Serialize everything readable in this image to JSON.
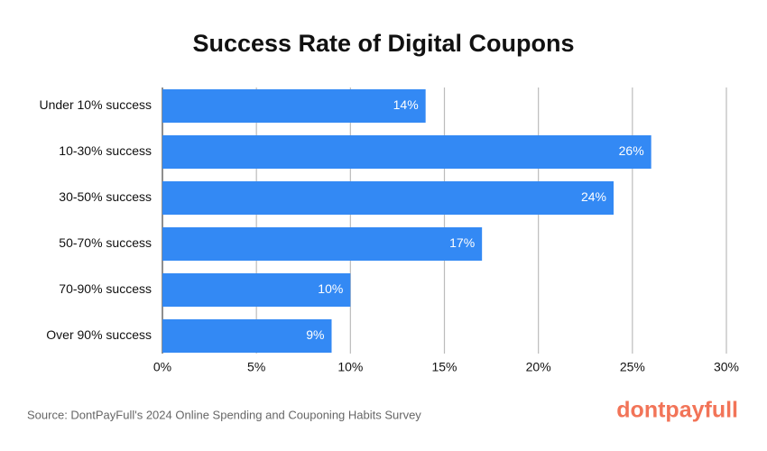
{
  "chart_data": {
    "type": "bar",
    "orientation": "horizontal",
    "title": "Success Rate of Digital Coupons",
    "categories": [
      "Under 10% success",
      "10-30% success",
      "30-50% success",
      "50-70% success",
      "70-90% success",
      "Over 90% success"
    ],
    "values": [
      14,
      26,
      24,
      17,
      10,
      9
    ],
    "value_labels": [
      "14%",
      "26%",
      "24%",
      "17%",
      "10%",
      "9%"
    ],
    "color": "#3389f4",
    "xlim": [
      0,
      30
    ],
    "xticks": [
      {
        "value": 0,
        "label": "0%"
      },
      {
        "value": 5,
        "label": "5%"
      },
      {
        "value": 10,
        "label": "10%"
      },
      {
        "value": 15,
        "label": "15%"
      },
      {
        "value": 20,
        "label": "20%"
      },
      {
        "value": 25,
        "label": "25%"
      },
      {
        "value": 30,
        "label": "30%"
      }
    ],
    "grid": true,
    "source": "Source: DontPayFull's 2024 Online Spending and Couponing Habits Survey",
    "logo": "dontpayfull"
  }
}
